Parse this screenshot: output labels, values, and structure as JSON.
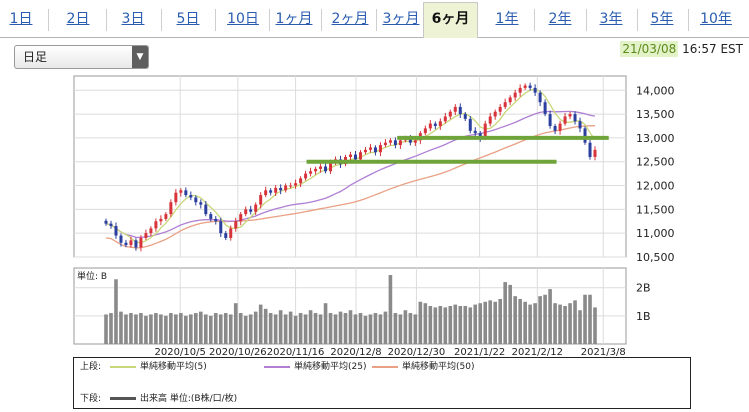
{
  "tabs": [
    {
      "label": "1日",
      "active": false
    },
    {
      "label": "2日",
      "active": false
    },
    {
      "label": "3日",
      "active": false
    },
    {
      "label": "5日",
      "active": false
    },
    {
      "label": "10日",
      "active": false
    },
    {
      "label": "1ヶ月",
      "active": false
    },
    {
      "label": "2ヶ月",
      "active": false
    },
    {
      "label": "3ヶ月",
      "active": false
    },
    {
      "label": "6ヶ月",
      "active": true
    },
    {
      "label": "1年",
      "active": false
    },
    {
      "label": "2年",
      "active": false
    },
    {
      "label": "3年",
      "active": false
    },
    {
      "label": "5年",
      "active": false
    },
    {
      "label": "10年",
      "active": false
    }
  ],
  "dropdown": {
    "value": "日足"
  },
  "timestamp": {
    "date": "21/03/08",
    "time": "16:57 EST"
  },
  "colors": {
    "ma5": "#c9d77a",
    "ma25": "#b07fd4",
    "ma50": "#e9a084",
    "up": "#d8333a",
    "down": "#2a3f9e",
    "volume": "#8a8a8a",
    "hline": "#6ea43a"
  },
  "chart_data": {
    "type": "candlestick",
    "y_ticks": [
      "10,500",
      "11,000",
      "11,500",
      "12,000",
      "12,500",
      "13,000",
      "13,500",
      "14,000"
    ],
    "ylim": [
      10500,
      14300
    ],
    "x_labels": [
      "2020/10/5",
      "2020/10/26",
      "2020/11/16",
      "2020/12/8",
      "2020/12/30",
      "2021/1/22",
      "2021/2/12",
      "2021/3/8"
    ],
    "start_date": "2020/9/8",
    "end_date": "2021/3/5",
    "horizontal_lines": [
      {
        "y": 13000,
        "from": "2020/12/23",
        "to": "2021/3/10"
      },
      {
        "y": 12500,
        "from": "2020/11/20",
        "to": "2021/2/19"
      }
    ],
    "close": [
      11200,
      11150,
      10950,
      10800,
      10750,
      10850,
      10700,
      10900,
      11000,
      11100,
      11250,
      11300,
      11400,
      11650,
      11850,
      11900,
      11800,
      11750,
      11650,
      11600,
      11400,
      11300,
      11250,
      11000,
      10900,
      11100,
      11250,
      11400,
      11500,
      11450,
      11600,
      11800,
      11900,
      11850,
      11950,
      11900,
      12000,
      12000,
      12050,
      12150,
      12250,
      12300,
      12350,
      12400,
      12300,
      12500,
      12550,
      12450,
      12600,
      12650,
      12550,
      12700,
      12750,
      12800,
      12700,
      12850,
      12900,
      12950,
      12850,
      12950,
      13000,
      12900,
      12950,
      13100,
      13200,
      13300,
      13250,
      13350,
      13450,
      13550,
      13650,
      13500,
      13400,
      13150,
      13100,
      13000,
      13300,
      13450,
      13550,
      13650,
      13750,
      13850,
      13950,
      14050,
      14100,
      14050,
      13950,
      13750,
      13500,
      13250,
      13150,
      13300,
      13450,
      13500,
      13350,
      13200,
      12900,
      12600,
      12750
    ],
    "volume_ticks": [
      "1B",
      "2B"
    ],
    "volume_unit": "単位: B",
    "volume_ylim": [
      0,
      2.7
    ],
    "volume": [
      1.05,
      1.1,
      2.3,
      1.15,
      1.05,
      1.1,
      1.05,
      1.1,
      1.0,
      1.05,
      1.1,
      1.05,
      1.0,
      1.1,
      1.05,
      1.1,
      1.0,
      1.05,
      1.1,
      1.15,
      1.05,
      1.0,
      1.1,
      1.05,
      1.1,
      1.05,
      1.45,
      1.1,
      1.0,
      1.05,
      1.15,
      1.4,
      1.25,
      1.1,
      1.05,
      1.2,
      1.05,
      1.15,
      1.0,
      1.1,
      1.05,
      1.2,
      1.1,
      1.05,
      1.45,
      1.1,
      1.05,
      1.15,
      1.1,
      1.2,
      1.05,
      1.1,
      1.0,
      1.05,
      1.1,
      1.05,
      1.15,
      2.45,
      1.1,
      1.05,
      1.2,
      1.1,
      1.05,
      1.5,
      1.45,
      1.35,
      1.3,
      1.35,
      1.3,
      1.35,
      1.4,
      1.35,
      1.35,
      1.3,
      1.4,
      1.45,
      1.5,
      1.55,
      1.5,
      1.6,
      2.2,
      2.1,
      1.7,
      1.6,
      1.5,
      1.4,
      1.45,
      1.7,
      1.75,
      1.95,
      1.45,
      1.4,
      1.35,
      1.45,
      1.55,
      1.2,
      1.75,
      1.75,
      1.3
    ]
  },
  "legend": {
    "upper_label": "上段:",
    "lower_label": "下段:",
    "ma5": "単純移動平均(5)",
    "ma25": "単純移動平均(25)",
    "ma50": "単純移動平均(50)",
    "volume": "出来高 単位:(B株/口/枚)"
  }
}
